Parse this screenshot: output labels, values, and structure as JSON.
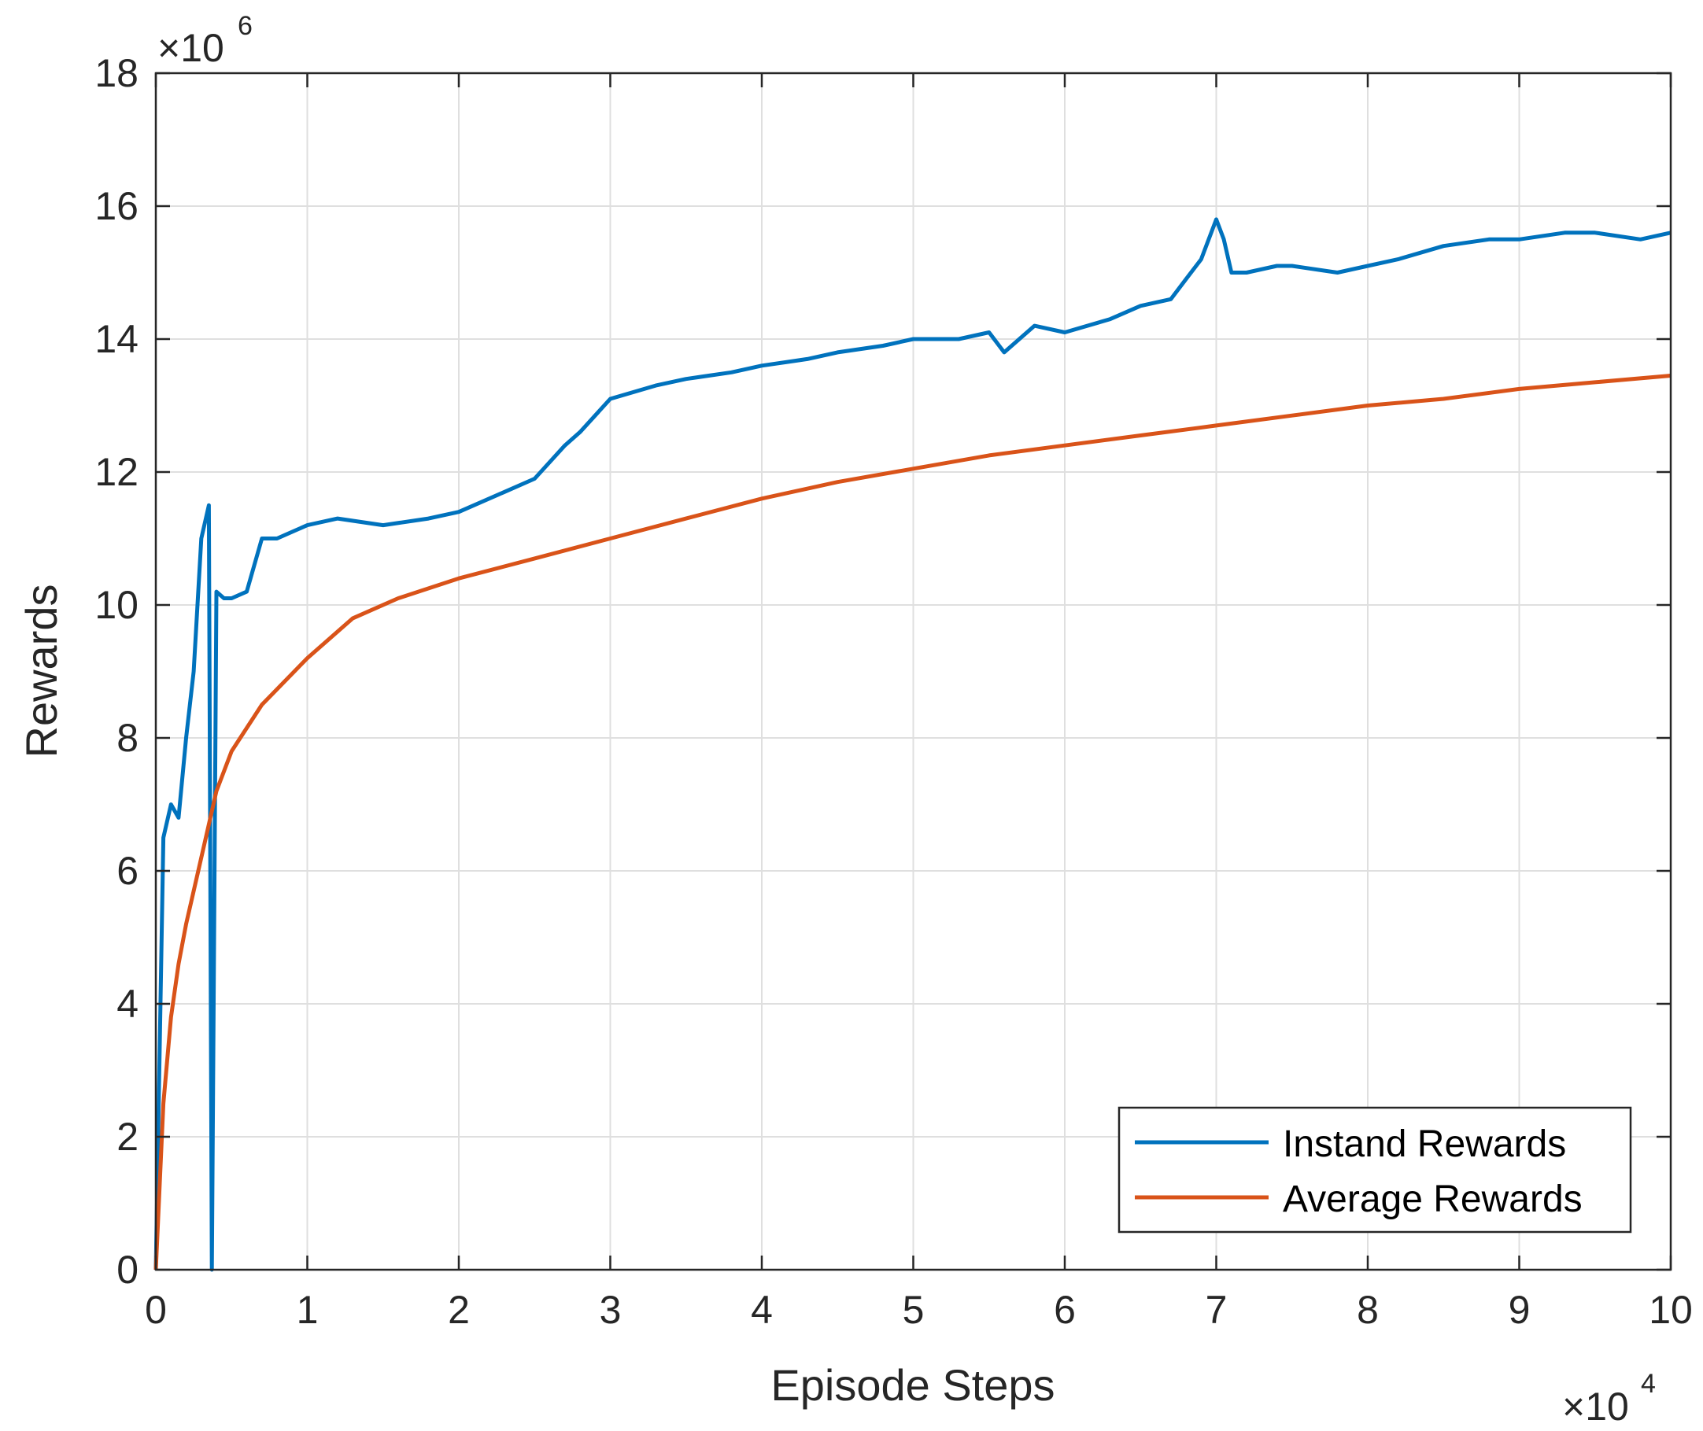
{
  "chart_data": {
    "type": "line",
    "xlabel": "Episode Steps",
    "ylabel": "Rewards",
    "x_multiplier": {
      "base": "×10",
      "exp": "4"
    },
    "y_multiplier": {
      "base": "×10",
      "exp": "6"
    },
    "xlim": [
      0,
      10
    ],
    "ylim": [
      0,
      18
    ],
    "xticks": [
      0,
      1,
      2,
      3,
      4,
      5,
      6,
      7,
      8,
      9,
      10
    ],
    "yticks": [
      0,
      2,
      4,
      6,
      8,
      10,
      12,
      14,
      16,
      18
    ],
    "xtick_labels": [
      "0",
      "1",
      "2",
      "3",
      "4",
      "5",
      "6",
      "7",
      "8",
      "9",
      "10"
    ],
    "ytick_labels": [
      "0",
      "2",
      "4",
      "6",
      "8",
      "10",
      "12",
      "14",
      "16",
      "18"
    ],
    "grid": true,
    "legend_position": "bottom-right",
    "series": [
      {
        "name": "Instand Rewards",
        "color": "#0072BD",
        "x": [
          0,
          0.05,
          0.1,
          0.15,
          0.2,
          0.25,
          0.3,
          0.35,
          0.37,
          0.4,
          0.45,
          0.5,
          0.6,
          0.7,
          0.8,
          0.9,
          1.0,
          1.2,
          1.5,
          1.8,
          2.0,
          2.3,
          2.5,
          2.7,
          2.8,
          3.0,
          3.3,
          3.5,
          3.8,
          4.0,
          4.3,
          4.5,
          4.8,
          5.0,
          5.3,
          5.5,
          5.6,
          5.8,
          6.0,
          6.3,
          6.5,
          6.7,
          6.8,
          6.9,
          7.0,
          7.05,
          7.1,
          7.2,
          7.4,
          7.5,
          7.8,
          8.0,
          8.2,
          8.5,
          8.8,
          9.0,
          9.3,
          9.5,
          9.8,
          10.0
        ],
        "y": [
          0,
          6.5,
          7.0,
          6.8,
          8.0,
          9.0,
          11.0,
          11.5,
          0,
          10.2,
          10.1,
          10.1,
          10.2,
          11.0,
          11.0,
          11.1,
          11.2,
          11.3,
          11.2,
          11.3,
          11.4,
          11.7,
          11.9,
          12.4,
          12.6,
          13.1,
          13.3,
          13.4,
          13.5,
          13.6,
          13.7,
          13.8,
          13.9,
          14.0,
          14.0,
          14.1,
          13.8,
          14.2,
          14.1,
          14.3,
          14.5,
          14.6,
          14.9,
          15.2,
          15.8,
          15.5,
          15.0,
          15.0,
          15.1,
          15.1,
          15.0,
          15.1,
          15.2,
          15.4,
          15.5,
          15.5,
          15.6,
          15.6,
          15.5,
          15.6
        ]
      },
      {
        "name": "Average Rewards",
        "color": "#D95319",
        "x": [
          0,
          0.05,
          0.1,
          0.15,
          0.2,
          0.3,
          0.4,
          0.5,
          0.7,
          1.0,
          1.3,
          1.6,
          2.0,
          2.5,
          3.0,
          3.5,
          4.0,
          4.5,
          5.0,
          5.5,
          6.0,
          6.5,
          7.0,
          7.5,
          8.0,
          8.5,
          9.0,
          9.5,
          10.0
        ],
        "y": [
          0,
          2.5,
          3.8,
          4.6,
          5.2,
          6.2,
          7.2,
          7.8,
          8.5,
          9.2,
          9.8,
          10.1,
          10.4,
          10.7,
          11.0,
          11.3,
          11.6,
          11.85,
          12.05,
          12.25,
          12.4,
          12.55,
          12.7,
          12.85,
          13.0,
          13.1,
          13.25,
          13.35,
          13.45
        ]
      }
    ]
  }
}
